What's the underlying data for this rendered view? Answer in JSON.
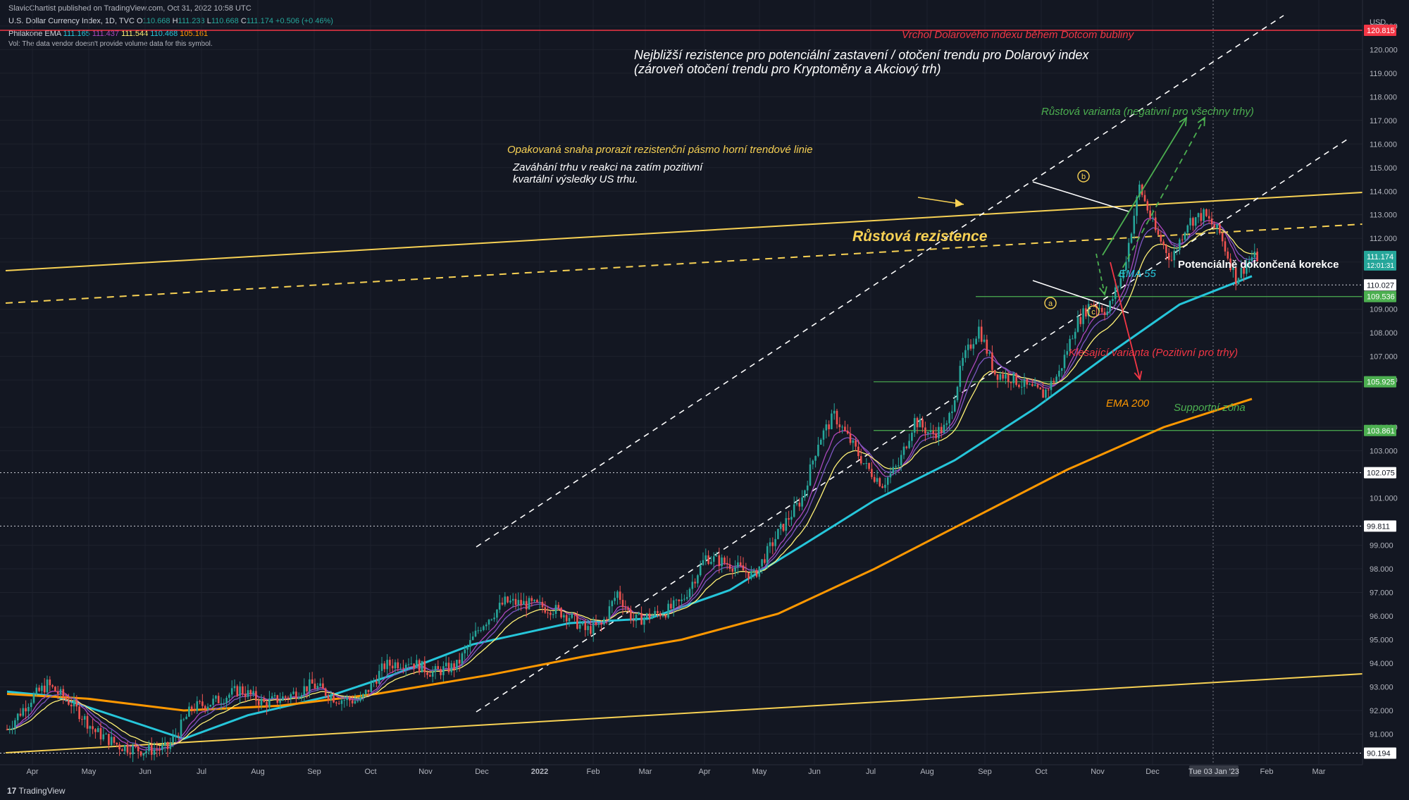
{
  "header": {
    "published": "SlavicChartist published on TradingView.com, Oct 31, 2022 10:58 UTC",
    "symbol": "U.S. Dollar Currency Index, 1D, TVC",
    "ohlc": {
      "o_label": "O",
      "o": "110.668",
      "h_label": "H",
      "h": "111.233",
      "l_label": "L",
      "l": "110.668",
      "c_label": "C",
      "c": "111.174",
      "change": "+0.506 (+0.46%)"
    },
    "ema_indicator": {
      "name": "Philakone EMA",
      "values": [
        "111.165",
        "111.437",
        "111.544",
        "110.468",
        "105.161"
      ],
      "colors": [
        "#26c6da",
        "#ab47bc",
        "#fff176",
        "#26c6da",
        "#ff9800"
      ]
    },
    "vol_note": "Vol: The data vendor doesn't provide volume data for this symbol."
  },
  "footer": {
    "logo_text": "TradingView",
    "logo_glyph": "17"
  },
  "chart_data": {
    "type": "candlestick",
    "title": "",
    "y_axis": {
      "unit_label": "USD",
      "range": [
        89.7,
        122.1
      ],
      "ticks": [
        "91.000",
        "92.000",
        "93.000",
        "94.000",
        "95.000",
        "96.000",
        "97.000",
        "98.000",
        "99.000",
        "101.000",
        "103.000",
        "104.000",
        "106.000",
        "107.000",
        "108.000",
        "109.000",
        "111.000",
        "112.000",
        "113.000",
        "114.000",
        "115.000",
        "116.000",
        "117.000",
        "118.000",
        "119.000",
        "120.000",
        "121.000"
      ]
    },
    "x_axis": {
      "ticks": [
        "Apr",
        "May",
        "Jun",
        "Jul",
        "Aug",
        "Sep",
        "Oct",
        "Nov",
        "Dec",
        "2022",
        "Feb",
        "Mar",
        "Apr",
        "May",
        "Jun",
        "Jul",
        "Aug",
        "Sep",
        "Oct",
        "Nov",
        "Dec",
        "Feb",
        "Mar"
      ],
      "cursor_label": "Tue 03 Jan '23"
    },
    "price_labels": [
      {
        "value": "120.815",
        "color": "#f23645"
      },
      {
        "value": "110.027",
        "color": "#ffffff"
      },
      {
        "value": "109.536",
        "color": "#4caf50"
      },
      {
        "value": "105.925",
        "color": "#4caf50"
      },
      {
        "value": "103.861",
        "color": "#4caf50"
      },
      {
        "value": "102.075",
        "color": "#ffffff"
      },
      {
        "value": "99.811",
        "color": "#ffffff"
      },
      {
        "value": "90.194",
        "color": "#ffffff"
      }
    ],
    "current_price": {
      "value": "111.174",
      "countdown": "12:01:31"
    },
    "price_path": [
      [
        0,
        91.2
      ],
      [
        3,
        92.5
      ],
      [
        5,
        93.1
      ],
      [
        8,
        92.3
      ],
      [
        11,
        91.1
      ],
      [
        14,
        90.5
      ],
      [
        17,
        90.3
      ],
      [
        20,
        90.4
      ],
      [
        23,
        92.1
      ],
      [
        26,
        92.4
      ],
      [
        29,
        92.9
      ],
      [
        32,
        92.3
      ],
      [
        35,
        92.6
      ],
      [
        38,
        93.1
      ],
      [
        41,
        92.5
      ],
      [
        44,
        92.4
      ],
      [
        47,
        93.9
      ],
      [
        50,
        94.1
      ],
      [
        53,
        93.6
      ],
      [
        56,
        93.9
      ],
      [
        59,
        95.6
      ],
      [
        62,
        96.6
      ],
      [
        65,
        96.5
      ],
      [
        68,
        96.3
      ],
      [
        70,
        96.0
      ],
      [
        72,
        95.4
      ],
      [
        74,
        95.6
      ],
      [
        76,
        97.0
      ],
      [
        78,
        95.8
      ],
      [
        80,
        96.0
      ],
      [
        82,
        96.2
      ],
      [
        84,
        96.6
      ],
      [
        87,
        98.5
      ],
      [
        90,
        98.2
      ],
      [
        93,
        97.7
      ],
      [
        96,
        99.5
      ],
      [
        99,
        101.0
      ],
      [
        101,
        103.4
      ],
      [
        103,
        104.5
      ],
      [
        105,
        103.4
      ],
      [
        107,
        102.3
      ],
      [
        109,
        101.6
      ],
      [
        111,
        102.4
      ],
      [
        113,
        104.3
      ],
      [
        115,
        103.7
      ],
      [
        117,
        104.0
      ],
      [
        119,
        106.8
      ],
      [
        121,
        108.2
      ],
      [
        123,
        106.3
      ],
      [
        125,
        106.1
      ],
      [
        127,
        105.7
      ],
      [
        129,
        105.4
      ],
      [
        131,
        106.3
      ],
      [
        133,
        108.3
      ],
      [
        135,
        109.3
      ],
      [
        137,
        108.9
      ],
      [
        139,
        110.6
      ],
      [
        141,
        114.2
      ],
      [
        143,
        112.3
      ],
      [
        145,
        111.1
      ],
      [
        147,
        112.7
      ],
      [
        149,
        113.0
      ],
      [
        151,
        112.2
      ],
      [
        153,
        110.3
      ],
      [
        155,
        111.2
      ]
    ],
    "ema_series": [
      {
        "name": "EMA 55",
        "color": "#26c6da",
        "points": [
          [
            0,
            92.8
          ],
          [
            6,
            92.6
          ],
          [
            14,
            91.7
          ],
          [
            22,
            90.8
          ],
          [
            30,
            91.8
          ],
          [
            40,
            92.6
          ],
          [
            48,
            93.5
          ],
          [
            58,
            94.8
          ],
          [
            70,
            95.7
          ],
          [
            80,
            95.9
          ],
          [
            90,
            97.1
          ],
          [
            100,
            99.2
          ],
          [
            108,
            100.9
          ],
          [
            118,
            102.6
          ],
          [
            128,
            104.8
          ],
          [
            138,
            107.3
          ],
          [
            146,
            109.2
          ],
          [
            155,
            110.4
          ]
        ]
      },
      {
        "name": "EMA 200",
        "color": "#ff9800",
        "points": [
          [
            0,
            92.7
          ],
          [
            10,
            92.5
          ],
          [
            22,
            92.0
          ],
          [
            34,
            92.2
          ],
          [
            46,
            92.7
          ],
          [
            60,
            93.5
          ],
          [
            72,
            94.3
          ],
          [
            84,
            95.0
          ],
          [
            96,
            96.1
          ],
          [
            108,
            98.0
          ],
          [
            120,
            100.1
          ],
          [
            132,
            102.2
          ],
          [
            144,
            104.0
          ],
          [
            155,
            105.2
          ]
        ]
      }
    ],
    "annotations": {
      "dotcom_label": "Vrchol Dolarového indexu během Dotcom bubliny",
      "nearest_resistance_line1": "Nejbližší rezistence pro potenciální zastavení / otočení trendu pro Dolarový index",
      "nearest_resistance_line2": "(zároveň otočení trendu pro Kryptoměny a Akciový trh)",
      "bull_variant": "Růstová varianta (negativní pro všechny trhy)",
      "repeated_attempt": "Opakovaná snaha prorazit rezistenční pásmo horní trendové linie",
      "hesitation_line1": "Zaváhání trhu v reakci na zatím pozitivní",
      "hesitation_line2": "kvartální výsledky US trhu.",
      "growth_resistance": "Růstová rezistence",
      "possible_correction": "Potenciálně dokončená korekce",
      "ema55_label": "EMA 55",
      "bear_variant": "Klesající varianta (Pozitivní pro trhy)",
      "ema200_label": "EMA 200",
      "support_zone": "Supportní zóna",
      "wave_a": "a",
      "wave_b": "b",
      "wave_c": "c"
    },
    "colors": {
      "background": "#131722",
      "up": "#26a69a",
      "down": "#ef5350",
      "ema_fast1": "#ab47bc",
      "ema_fast2": "#fff176",
      "ema_mid": "#26c6da",
      "ema_slow": "#ff9800",
      "resistance": "#f7d154",
      "support": "#4caf50",
      "dotcom": "#f23645"
    }
  }
}
